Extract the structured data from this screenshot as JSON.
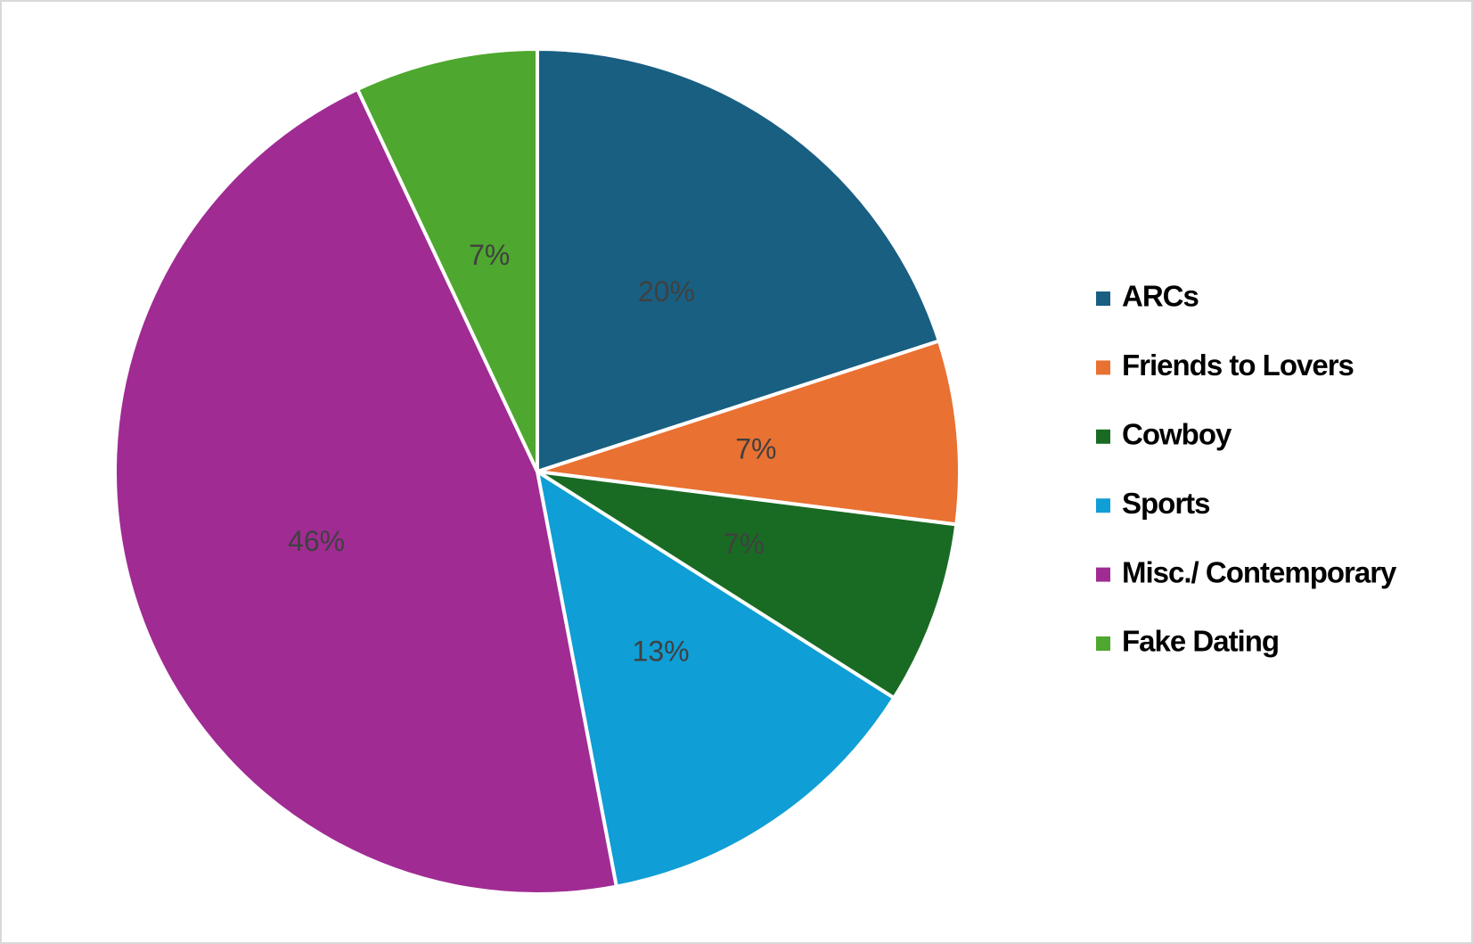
{
  "chart_data": {
    "type": "pie",
    "categories": [
      "ARCs",
      "Friends to Lovers",
      "Cowboy",
      "Sports",
      "Misc./ Contemporary",
      "Fake Dating"
    ],
    "values": [
      20,
      7,
      7,
      13,
      46,
      7
    ],
    "value_labels": [
      "20%",
      "7%",
      "7%",
      "13%",
      "46%",
      "7%"
    ],
    "colors": [
      "#185f82",
      "#e97132",
      "#196b24",
      "#0f9ed5",
      "#a02b93",
      "#4ea72e"
    ],
    "legend": "right"
  }
}
